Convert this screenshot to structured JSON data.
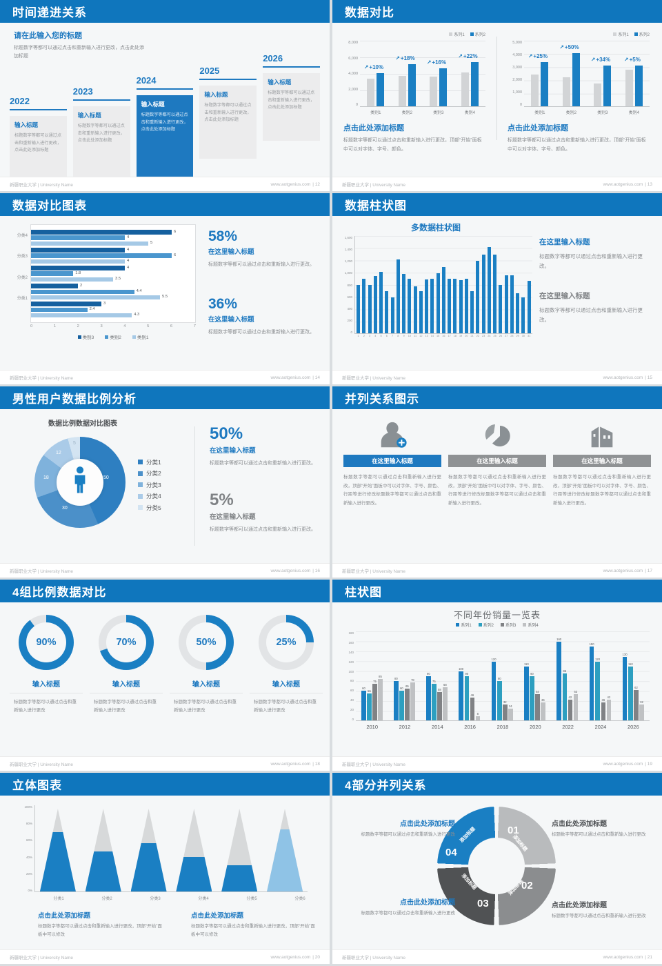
{
  "footer": {
    "org": "新疆职业大学 | University Name",
    "site": "www.aotgenius.com"
  },
  "colors": {
    "accent_blue": "#1a7fc3",
    "header_blue": "#0f76bd",
    "gray_bar": "#d2d4d6",
    "muted_text": "#8a8d90"
  },
  "slides": [
    {
      "id": "timeline",
      "title": "时间递进关系",
      "page_label": "| 12",
      "intro_title": "请在此输入您的标题",
      "intro_body": "标题数字等都可以通过点击和重新输入进行更改，点击此处添加标题",
      "years": [
        "2022",
        "2023",
        "2024",
        "2025",
        "2026"
      ],
      "highlight_index": 2,
      "item_title": "输入标题",
      "item_body": "标题数字等都可以通过点击和重新输入进行更改，点击此处添加标题"
    },
    {
      "id": "compare-bars",
      "title": "数据对比",
      "page_label": "| 13",
      "legend": [
        "系列1",
        "系列2"
      ],
      "heading": "点击此处添加标题",
      "body": "标题数字等都可以通过点击和重新输入进行更改，顶部“开始”面板中可以对字体、字号、颜色。",
      "charts": [
        {
          "ymax": 8000,
          "yticks": [
            "8,000",
            "6,000",
            "4,000",
            "2,000",
            "0"
          ],
          "categories": [
            "类别1",
            "类别2",
            "类别3",
            "类别4"
          ],
          "series1": [
            3500,
            3800,
            3700,
            4300
          ],
          "series2": [
            4200,
            5300,
            4800,
            5600
          ],
          "growth": [
            "+10%",
            "+18%",
            "+16%",
            "+22%"
          ]
        },
        {
          "ymax": 5000,
          "yticks": [
            "5,000",
            "4,000",
            "3,000",
            "2,000",
            "1,000",
            "0"
          ],
          "categories": [
            "类别1",
            "类别2",
            "类别3",
            "类别4"
          ],
          "series1": [
            2500,
            2300,
            1800,
            2900
          ],
          "series2": [
            3500,
            4200,
            3200,
            3200
          ],
          "growth": [
            "+25%",
            "+50%",
            "+34%",
            "+5%"
          ]
        }
      ]
    },
    {
      "id": "hbar",
      "title": "数据对比图表",
      "page_label": "| 14",
      "xmax": 7,
      "xticks": [
        "0",
        "1",
        "2",
        "3",
        "4",
        "5",
        "6",
        "7"
      ],
      "legend": [
        "类别3",
        "类别2",
        "类别1"
      ],
      "groups": [
        {
          "label": "分类4",
          "values": [
            6,
            4,
            5
          ]
        },
        {
          "label": "分类3",
          "values": [
            4,
            6,
            4
          ]
        },
        {
          "label": "分类2",
          "values": [
            4,
            1.8,
            3.5
          ]
        },
        {
          "label": "分类1",
          "values": [
            2,
            4.4,
            5.5
          ]
        },
        {
          "label": "",
          "values": [
            3,
            2.4,
            4.3
          ]
        }
      ],
      "stats": [
        {
          "pct": "58%",
          "title": "在这里输入标题",
          "body": "标题数字等都可以通过点击和重新输入进行更改。",
          "muted": false
        },
        {
          "pct": "36%",
          "title": "在这里输入标题",
          "body": "标题数字等都可以通过点击和重新输入进行更改。",
          "muted": false
        }
      ]
    },
    {
      "id": "columns31",
      "title": "数据柱状图",
      "page_label": "| 15",
      "chart_title": "多数据柱状图",
      "ymax": 1600,
      "yticks": [
        "1,600",
        "1,400",
        "1,200",
        "1,000",
        "800",
        "600",
        "400",
        "200",
        "0"
      ],
      "xticks": [
        "1",
        "2",
        "3",
        "4",
        "5",
        "6",
        "7",
        "8",
        "9",
        "10",
        "11",
        "12",
        "13",
        "14",
        "15",
        "16",
        "17",
        "18",
        "19",
        "20",
        "21",
        "22",
        "23",
        "24",
        "25",
        "26",
        "27",
        "28",
        "29",
        "30",
        "31"
      ],
      "values": [
        800,
        900,
        800,
        950,
        1020,
        700,
        600,
        1220,
        980,
        900,
        780,
        700,
        890,
        900,
        990,
        1100,
        900,
        900,
        880,
        900,
        700,
        1200,
        1300,
        1430,
        1300,
        800,
        960,
        965,
        660,
        600,
        870
      ],
      "stats": [
        {
          "title": "在这里输入标题",
          "body": "标题数字等都可以通过点击和重新输入进行更改。",
          "muted": false
        },
        {
          "title": "在这里输入标题",
          "body": "标题数字等都可以通过点击和重新输入进行更改。",
          "muted": true
        }
      ]
    },
    {
      "id": "donut",
      "title": "男性用户数据比例分析",
      "page_label": "| 16",
      "chart_title": "数据比例数据对比图表",
      "values": [
        50,
        30,
        18,
        12,
        5
      ],
      "legend": [
        "分类1",
        "分类2",
        "分类3",
        "分类4",
        "分类5"
      ],
      "stats": [
        {
          "pct": "50%",
          "title": "在这里输入标题",
          "body": "标题数字等都可以通过点击和重新输入进行更改。",
          "muted": false
        },
        {
          "pct": "5%",
          "title": "在这里输入标题",
          "body": "标题数字等都可以通过点击和重新输入进行更改。",
          "muted": true
        }
      ]
    },
    {
      "id": "parallel",
      "title": "并列关系图示",
      "page_label": "| 17",
      "items": [
        {
          "icon": "nurse-add-icon",
          "title": "在这里输入标题",
          "accent": true
        },
        {
          "icon": "pie-3d-icon",
          "title": "在这里输入标题",
          "accent": false
        },
        {
          "icon": "building-icon",
          "title": "在这里输入标题",
          "accent": false
        }
      ],
      "body": "标题数字等都可以通过点击和重新输入进行更改，顶部“开始”面板中可以对字体、字号、颜色、行距等进行修改标题数字等都可以通过点击和重新输入进行更改。"
    },
    {
      "id": "rings",
      "title": "4组比例数据对比",
      "page_label": "| 18",
      "item_title": "输入标题",
      "item_body": "标题数字等都可以通过点击和重新输入进行更改",
      "items": [
        {
          "pct": 90,
          "label": "90%"
        },
        {
          "pct": 70,
          "label": "70%"
        },
        {
          "pct": 50,
          "label": "50%"
        },
        {
          "pct": 25,
          "label": "25%"
        }
      ]
    },
    {
      "id": "grouped",
      "title": "柱状图",
      "page_label": "| 19",
      "chart_title": "不同年份销量一览表",
      "legend": [
        "系列1",
        "系列2",
        "系列3",
        "系列4"
      ],
      "years": [
        "2010",
        "2012",
        "2014",
        "2016",
        "2018",
        "2020",
        "2022",
        "2024",
        "2026"
      ],
      "ymax": 180,
      "yticks": [
        "180",
        "160",
        "140",
        "120",
        "100",
        "80",
        "60",
        "40",
        "20",
        "0"
      ],
      "series": [
        [
          60,
          80,
          90,
          100,
          120,
          110,
          160,
          150,
          130
        ],
        [
          55,
          60,
          75,
          90,
          80,
          90,
          96,
          120,
          110
        ],
        [
          75,
          65,
          58,
          46,
          32,
          54,
          42,
          36,
          62
        ],
        [
          85,
          78,
          68,
          8,
          24,
          36,
          53,
          42,
          32
        ]
      ]
    },
    {
      "id": "cones",
      "title": "立体图表",
      "page_label": "| 20",
      "categories": [
        "分类1",
        "分类2",
        "分类3",
        "分类4",
        "分类5",
        "分类6"
      ],
      "fills": [
        72,
        48,
        58,
        42,
        32,
        75
      ],
      "yticks": [
        "100%",
        "80%",
        "60%",
        "40%",
        "20%",
        "0%"
      ],
      "blocks": [
        {
          "title": "点击此处添加标题",
          "body": "标题数字等都可以通过点击和重新输入进行更改，顶部“开始”面板中可以修改"
        },
        {
          "title": "点击此处添加标题",
          "body": "标题数字等都可以通过点击和重新输入进行更改，顶部“开始”面板中可以修改"
        }
      ]
    },
    {
      "id": "cycle",
      "title": "4部分并列关系",
      "page_label": "| 21",
      "segments": [
        {
          "num": "01",
          "label": "添加标题"
        },
        {
          "num": "02",
          "label": "添加标题"
        },
        {
          "num": "03",
          "label": "添加标题"
        },
        {
          "num": "04",
          "label": "添加标题"
        }
      ],
      "blocks": [
        {
          "title": "点击此处添加标题",
          "body": "标题数字等都可以通过点击和重新输入进行更改",
          "accent": true
        },
        {
          "title": "点击此处添加标题",
          "body": "标题数字等都可以通过点击和重新输入进行更改",
          "accent": false
        },
        {
          "title": "点击此处添加标题",
          "body": "标题数字等都可以通过点击和重新输入进行更改",
          "accent": true
        },
        {
          "title": "点击此处添加标题",
          "body": "标题数字等都可以通过点击和重新输入进行更改",
          "accent": false
        }
      ]
    }
  ]
}
